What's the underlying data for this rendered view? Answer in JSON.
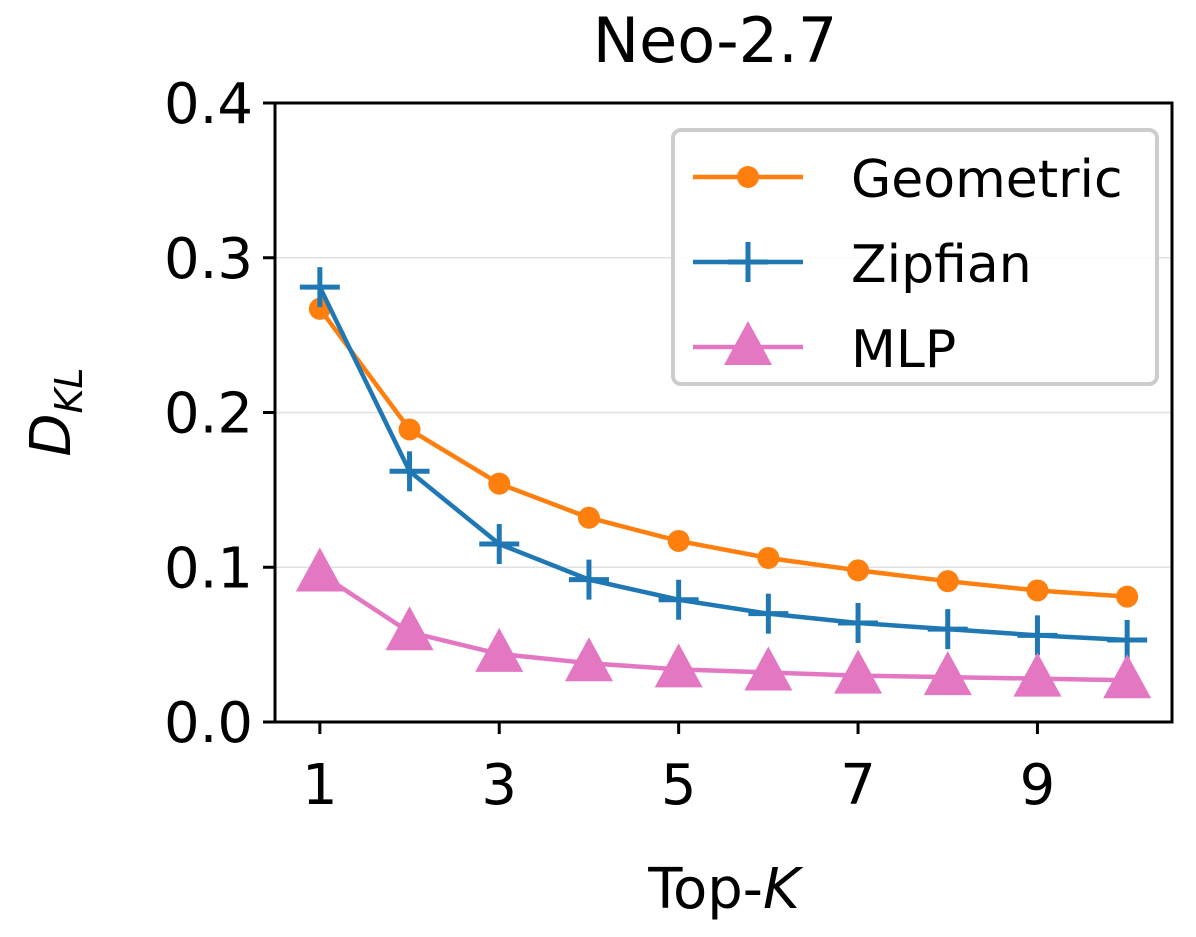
{
  "chart_data": {
    "type": "line",
    "title": "Neo-2.7",
    "xlabel": "Top-",
    "xlabel_var": "K",
    "ylabel": "D",
    "ylabel_sub": "KL",
    "x": [
      1,
      2,
      3,
      4,
      5,
      6,
      7,
      8,
      9,
      10
    ],
    "xlim": [
      0.5,
      10.5
    ],
    "ylim": [
      0.0,
      0.4
    ],
    "x_ticks": [
      1,
      3,
      5,
      7,
      9
    ],
    "x_tick_labels": [
      "1",
      "3",
      "5",
      "7",
      "9"
    ],
    "y_ticks": [
      0.0,
      0.1,
      0.2,
      0.3,
      0.4
    ],
    "y_tick_labels": [
      "0.0",
      "0.1",
      "0.2",
      "0.3",
      "0.4"
    ],
    "grid": "horizontal",
    "legend_position": "top-right",
    "series": [
      {
        "name": "Geometric",
        "color": "#ff7f0e",
        "marker": "circle",
        "values": [
          0.267,
          0.189,
          0.154,
          0.132,
          0.117,
          0.106,
          0.098,
          0.091,
          0.085,
          0.081
        ]
      },
      {
        "name": "Zipfian",
        "color": "#1f77b4",
        "marker": "plus",
        "values": [
          0.281,
          0.162,
          0.115,
          0.092,
          0.079,
          0.07,
          0.064,
          0.06,
          0.056,
          0.053
        ]
      },
      {
        "name": "MLP",
        "color": "#e377c2",
        "marker": "triangle",
        "values": [
          0.096,
          0.058,
          0.044,
          0.038,
          0.034,
          0.032,
          0.03,
          0.029,
          0.028,
          0.027
        ]
      }
    ]
  }
}
